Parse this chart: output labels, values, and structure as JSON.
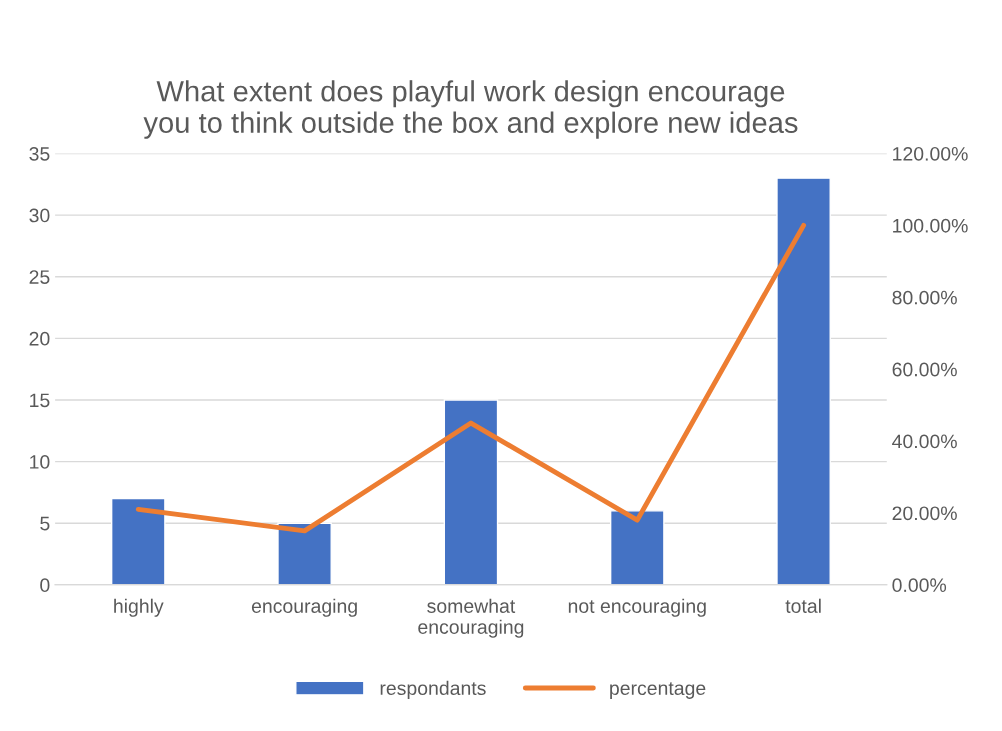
{
  "chart_data": {
    "type": "bar",
    "title": "What extent does playful work design encourage\nyou to think outside the box and explore new ideas",
    "categories": [
      "highly",
      "encouraging",
      "somewhat encouraging",
      "not encouraging",
      "total"
    ],
    "series": [
      {
        "name": "respondants",
        "color": "#4472c4",
        "values": [
          7,
          5,
          15,
          6,
          33
        ]
      },
      {
        "name": "percentage",
        "type": "line",
        "axis": "y2",
        "color": "#ed7d31",
        "values": [
          21,
          15,
          45,
          18,
          100
        ]
      }
    ],
    "ylim": [
      0,
      35
    ],
    "yticks": [
      0,
      5,
      10,
      15,
      20,
      25,
      30,
      35
    ],
    "y2lim": [
      0,
      120
    ],
    "y2ticks": [
      {
        "value": 0,
        "label": "0.00%"
      },
      {
        "value": 20,
        "label": "20.00%"
      },
      {
        "value": 40,
        "label": "40.00%"
      },
      {
        "value": 60,
        "label": "60.00%"
      },
      {
        "value": 80,
        "label": "80.00%"
      },
      {
        "value": 100,
        "label": "100.00%"
      },
      {
        "value": 120,
        "label": "120.00%"
      }
    ],
    "grid": "y",
    "legend": "bottom",
    "marker": "none",
    "line_style": "solid"
  }
}
